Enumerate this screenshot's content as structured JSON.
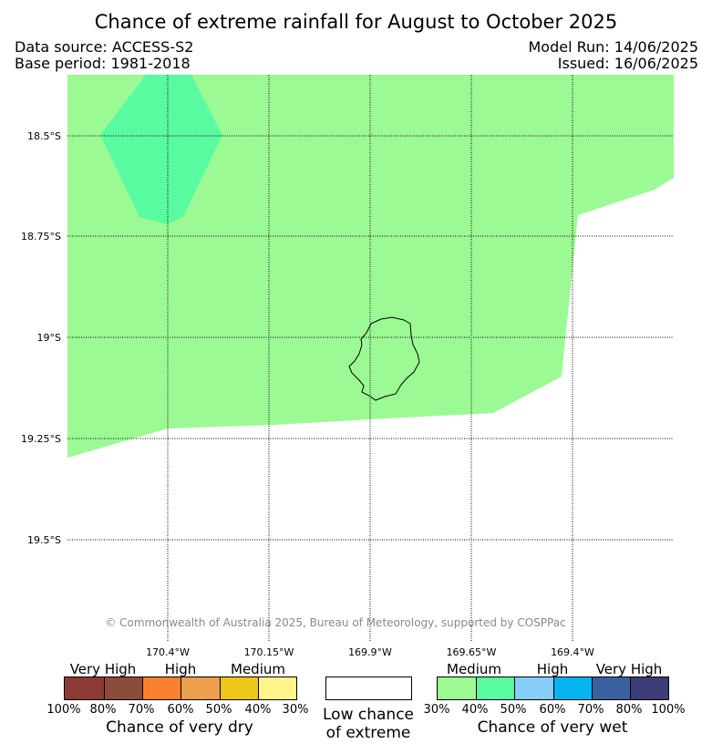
{
  "title": "Chance of extreme rainfall for August to October 2025",
  "data_source": "Data source: ACCESS-S2",
  "base_period": "Base period: 1981-2018",
  "model_run": "Model Run: 14/06/2025",
  "issued": "Issued: 16/06/2025",
  "map": {
    "lat_labels": [
      "18.5°S",
      "18.75°S",
      "19°S",
      "19.25°S",
      "19.5°S"
    ],
    "lon_labels": [
      "170.4°W",
      "170.15°W",
      "169.9°W",
      "169.65°W",
      "169.4°W"
    ],
    "colors": {
      "wet_30_40": "#9cfa94",
      "wet_40_50": "#59fba1"
    },
    "copyright": "© Commonwealth of Australia 2025, Bureau of Meteorology, supported by COSPPac"
  },
  "legend": {
    "dry": {
      "levels": [
        "Very High",
        "High",
        "Medium"
      ],
      "percents": [
        "100%",
        "80%",
        "70%",
        "60%",
        "50%",
        "40%",
        "30%"
      ],
      "colors": [
        "#8b3a34",
        "#8c4c3a",
        "#fb8130",
        "#ee9f4e",
        "#efc61a",
        "#fdf48c"
      ],
      "caption": "Chance of very dry"
    },
    "low": {
      "caption_line1": "Low chance",
      "caption_line2": "of extreme",
      "color": "#ffffff"
    },
    "wet": {
      "levels": [
        "Medium",
        "High",
        "Very High"
      ],
      "percents": [
        "30%",
        "40%",
        "50%",
        "60%",
        "70%",
        "80%",
        "100%"
      ],
      "colors": [
        "#9cfa94",
        "#59fba1",
        "#86cdf9",
        "#05b3ee",
        "#3a62a0",
        "#3d3d7a"
      ],
      "caption": "Chance of very wet"
    }
  }
}
